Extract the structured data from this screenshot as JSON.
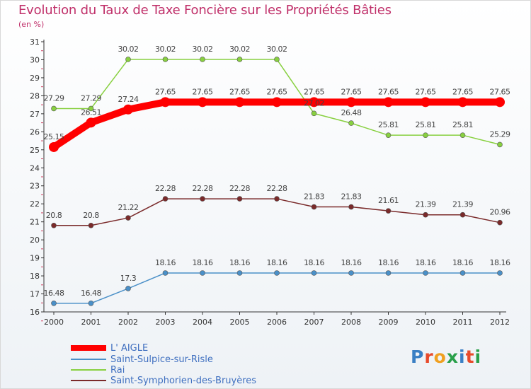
{
  "title": "Evolution du Taux de Taxe Foncière sur les Propriétés Bâties",
  "unit": "(en %)",
  "logo": {
    "text": "Proxiti",
    "colors": [
      "#3a7fc4",
      "#e84a2a",
      "#f0a020",
      "#2aa04a",
      "#3a7fc4",
      "#e84a2a",
      "#2aa04a"
    ]
  },
  "chart_data": {
    "type": "line",
    "title": "Evolution du Taux de Taxe Foncière sur les Propriétés Bâties",
    "ylabel": "(en %)",
    "xlabel": "",
    "ylim": [
      16,
      31
    ],
    "yticks": [
      16,
      17,
      18,
      19,
      20,
      21,
      22,
      23,
      24,
      25,
      26,
      27,
      28,
      29,
      30,
      31
    ],
    "categories": [
      "2000",
      "2001",
      "2002",
      "2003",
      "2004",
      "2005",
      "2006",
      "2007",
      "2008",
      "2009",
      "2010",
      "2011",
      "2012"
    ],
    "series": [
      {
        "name": "L' AIGLE",
        "color": "#ff0000",
        "values": [
          25.15,
          26.51,
          27.24,
          27.65,
          27.65,
          27.65,
          27.65,
          27.65,
          27.65,
          27.65,
          27.65,
          27.65,
          27.65
        ],
        "labels": [
          "25.15",
          "26.51",
          "27.24",
          "27.65",
          "27.65",
          "27.65",
          "27.65",
          "27.65",
          "27.65",
          "27.65",
          "27.65",
          "27.65",
          "27.65"
        ]
      },
      {
        "name": "Saint-Sulpice-sur-Risle",
        "color": "#4a90c8",
        "values": [
          16.48,
          16.48,
          17.3,
          18.16,
          18.16,
          18.16,
          18.16,
          18.16,
          18.16,
          18.16,
          18.16,
          18.16,
          18.16
        ],
        "labels": [
          "16.48",
          "16.48",
          "17.3",
          "18.16",
          "18.16",
          "18.16",
          "18.16",
          "18.16",
          "18.16",
          "18.16",
          "18.16",
          "18.16",
          "18.16"
        ]
      },
      {
        "name": "Rai",
        "color": "#88d040",
        "values": [
          27.29,
          27.29,
          30.02,
          30.02,
          30.02,
          30.02,
          30.02,
          27.02,
          26.48,
          25.81,
          25.81,
          25.81,
          25.29
        ],
        "labels": [
          "27.29",
          "27.29",
          "30.02",
          "30.02",
          "30.02",
          "30.02",
          "30.02",
          "27.02",
          "26.48",
          "25.81",
          "25.81",
          "25.81",
          "25.29"
        ]
      },
      {
        "name": "Saint-Symphorien-des-Bruyères",
        "color": "#7a2a2a",
        "values": [
          20.8,
          20.8,
          21.22,
          22.28,
          22.28,
          22.28,
          22.28,
          21.83,
          21.83,
          21.61,
          21.39,
          21.39,
          20.96
        ],
        "labels": [
          "20.8",
          "20.8",
          "21.22",
          "22.28",
          "22.28",
          "22.28",
          "22.28",
          "21.83",
          "21.83",
          "21.61",
          "21.39",
          "21.39",
          "20.96"
        ]
      }
    ],
    "grid": false,
    "legend": "bottom-left"
  }
}
